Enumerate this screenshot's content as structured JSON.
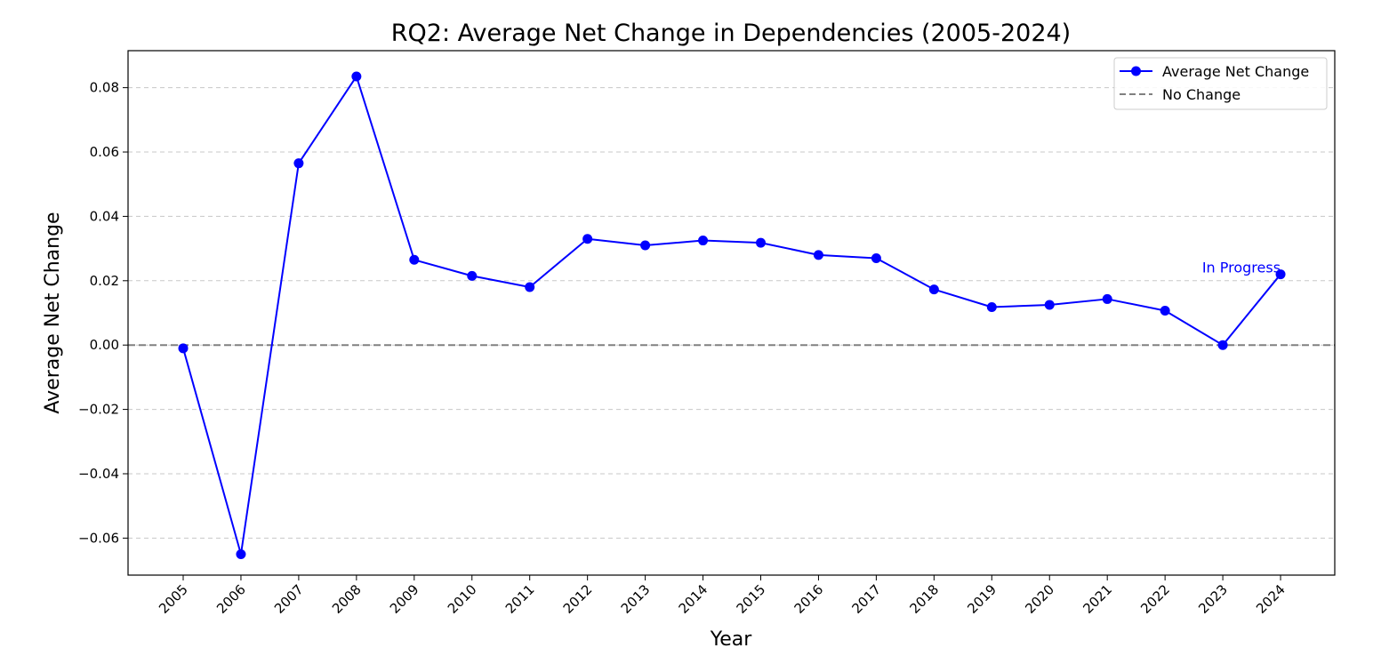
{
  "chart_data": {
    "type": "line",
    "title": "RQ2: Average Net Change in Dependencies (2005-2024)",
    "xlabel": "Year",
    "ylabel": "Average Net Change",
    "x": [
      "2005",
      "2006",
      "2007",
      "2008",
      "2009",
      "2010",
      "2011",
      "2012",
      "2013",
      "2014",
      "2015",
      "2016",
      "2017",
      "2018",
      "2019",
      "2020",
      "2021",
      "2022",
      "2023",
      "2024"
    ],
    "series": [
      {
        "name": "Average Net Change",
        "color": "#0000ff",
        "marker": "circle",
        "values": [
          -0.001,
          -0.065,
          0.0565,
          0.0835,
          0.0265,
          0.0215,
          0.018,
          0.033,
          0.031,
          0.0325,
          0.0318,
          0.028,
          0.027,
          0.0173,
          0.0118,
          0.0125,
          0.0143,
          0.0107,
          0.0,
          0.022
        ]
      }
    ],
    "reference_line": {
      "name": "No Change",
      "y": 0,
      "color": "#808080",
      "style": "dashed"
    },
    "annotation": {
      "text": "In Progress",
      "x": "2024",
      "y": 0.022,
      "color": "#0000ff"
    },
    "yticks": [
      -0.06,
      -0.04,
      -0.02,
      0.0,
      0.02,
      0.04,
      0.06,
      0.08
    ],
    "ytick_labels": [
      "−0.06",
      "−0.04",
      "−0.02",
      "0.00",
      "0.02",
      "0.04",
      "0.06",
      "0.08"
    ],
    "ylim": [
      -0.0715,
      0.0915
    ],
    "grid": "y-dashed",
    "legend": "top-right"
  }
}
